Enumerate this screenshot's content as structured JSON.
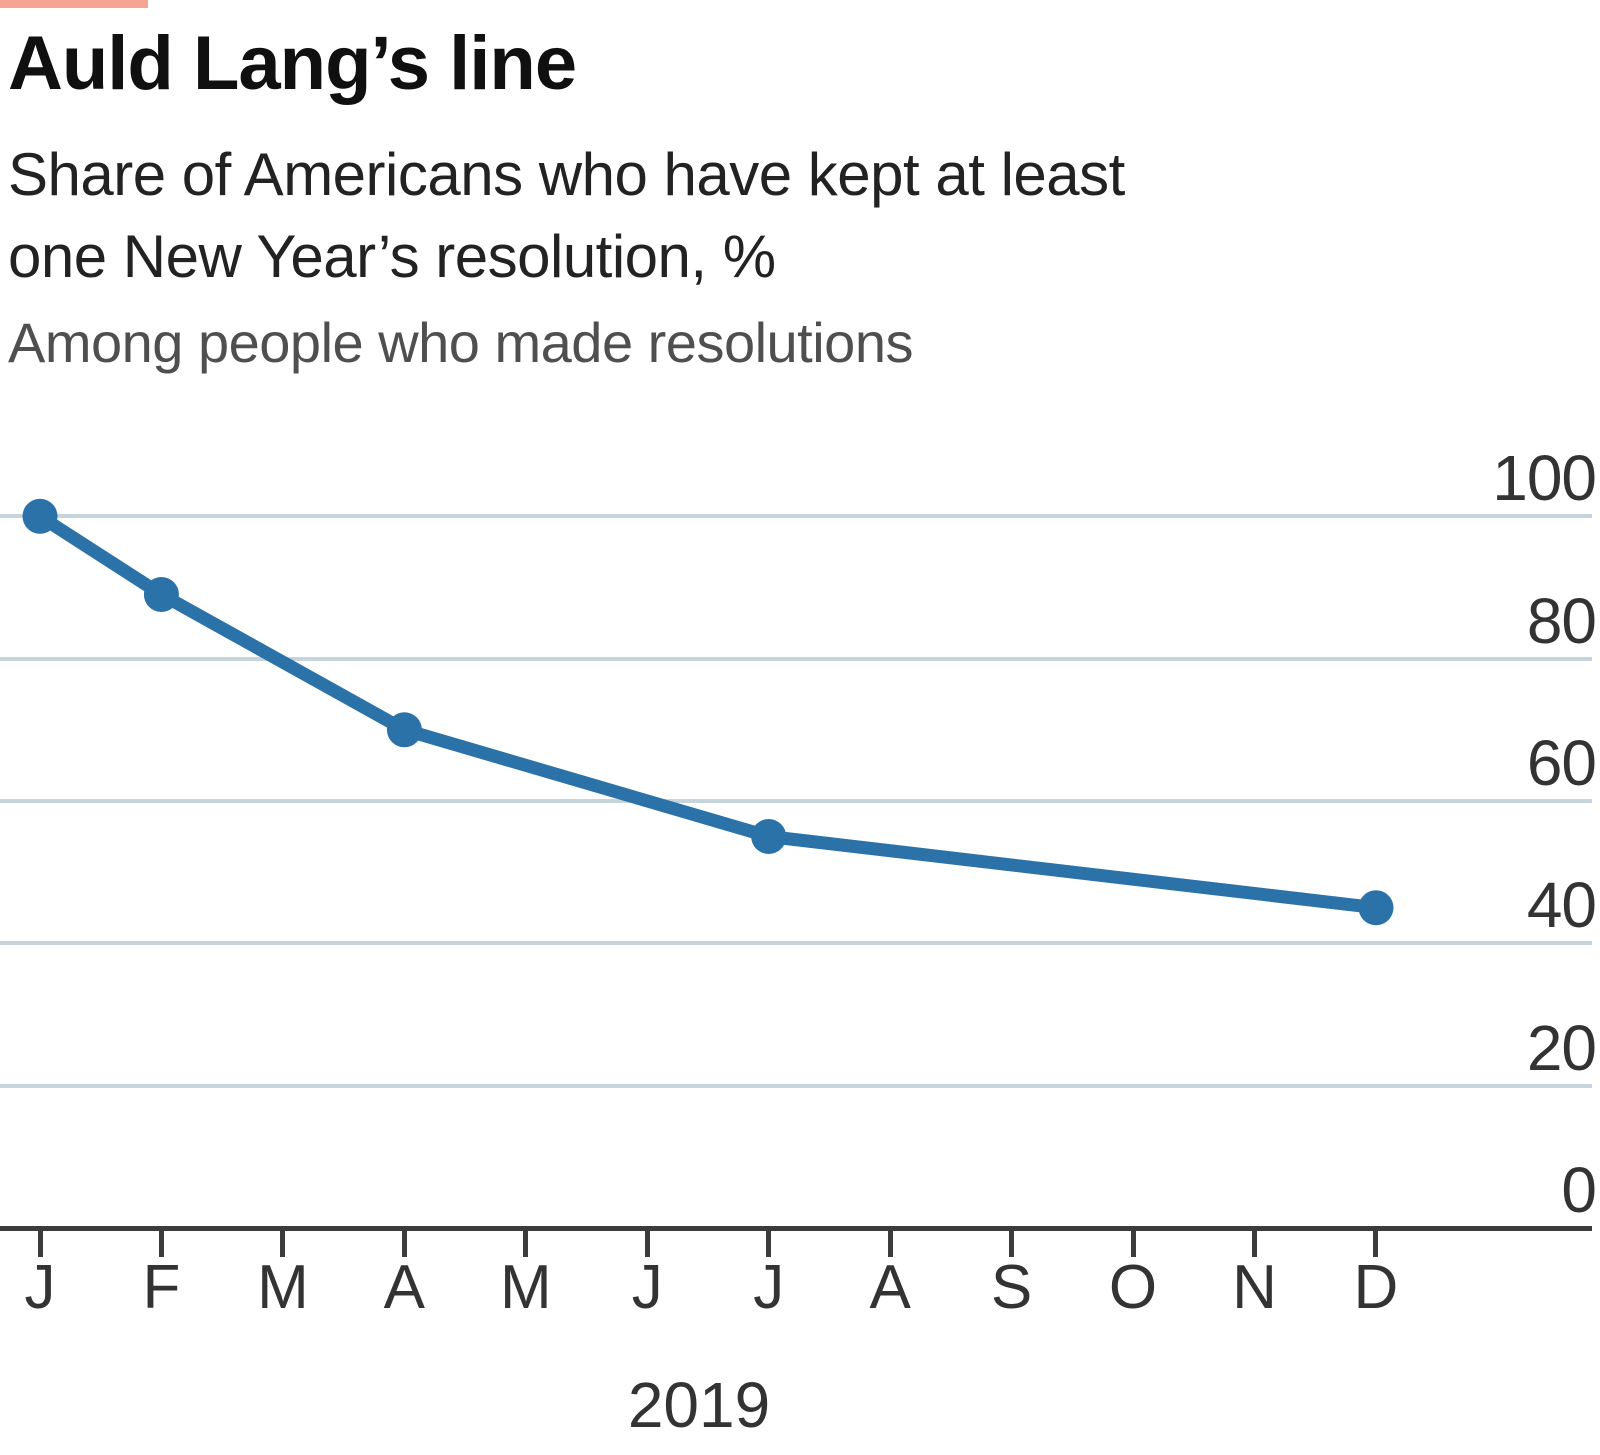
{
  "chart_data": {
    "type": "line",
    "title": "Auld Lang’s line",
    "subtitle_lines": [
      "Share of Americans who have kept at least",
      "one New Year’s resolution, %"
    ],
    "note": "Among people who made resolutions",
    "x_axis_label": "2019",
    "x_categories": [
      "J",
      "F",
      "M",
      "A",
      "M",
      "J",
      "J",
      "A",
      "S",
      "O",
      "N",
      "D"
    ],
    "ylim": [
      0,
      100
    ],
    "yticks": [
      0,
      20,
      40,
      60,
      80,
      100
    ],
    "grid": true,
    "legend": "none",
    "y_axis_side": "right",
    "series": [
      {
        "name": "Share who have kept at least one resolution, %",
        "points": [
          {
            "month": "January",
            "x_index": 0,
            "value": 100
          },
          {
            "month": "February",
            "x_index": 1,
            "value": 89
          },
          {
            "month": "April",
            "x_index": 3,
            "value": 70
          },
          {
            "month": "July",
            "x_index": 6,
            "value": 55
          },
          {
            "month": "December",
            "x_index": 11,
            "value": 45
          }
        ]
      }
    ],
    "colors": {
      "line": "#2b72a9",
      "gridline": "#c6d4db",
      "axis": "#3c3c3c",
      "accent_tab": "#f6a592",
      "title_text": "#101010",
      "subtitle_text": "#222222",
      "note_text": "#4f4f4f",
      "tick_label": "#333333"
    }
  }
}
